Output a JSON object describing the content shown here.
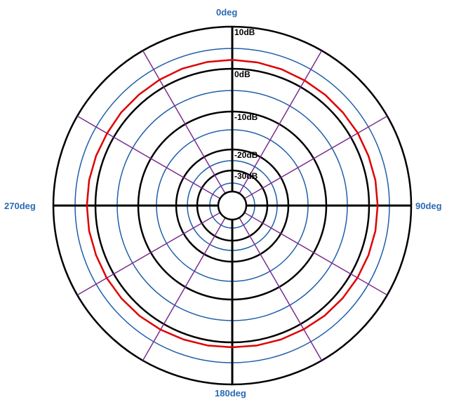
{
  "chart_data": {
    "type": "polar-line",
    "angle_labels": [
      "0deg",
      "90deg",
      "180deg",
      "270deg"
    ],
    "angle_label_angles": [
      0,
      90,
      180,
      270
    ],
    "ring_labels": [
      "10dB",
      "0dB",
      "-10dB",
      "-20dB",
      "-30dB"
    ],
    "major_rings_db": [
      10,
      0,
      -10,
      -20,
      -30
    ],
    "minor_rings_db": [
      5,
      -5,
      -15,
      -25,
      -35
    ],
    "r_range_db": [
      -40,
      10
    ],
    "spoke_angles_deg": [
      30,
      60,
      120,
      150,
      210,
      240,
      300,
      330
    ],
    "series": [
      {
        "color": "#e00000",
        "points": [
          {
            "angle": 0,
            "db": 2.2
          },
          {
            "angle": 10,
            "db": 2.1
          },
          {
            "angle": 20,
            "db": 2.0
          },
          {
            "angle": 30,
            "db": 1.9
          },
          {
            "angle": 40,
            "db": 1.9
          },
          {
            "angle": 50,
            "db": 1.9
          },
          {
            "angle": 60,
            "db": 2.0
          },
          {
            "angle": 70,
            "db": 2.0
          },
          {
            "angle": 80,
            "db": 2.1
          },
          {
            "angle": 90,
            "db": 2.1
          },
          {
            "angle": 100,
            "db": 2.1
          },
          {
            "angle": 110,
            "db": 2.0
          },
          {
            "angle": 120,
            "db": 1.9
          },
          {
            "angle": 130,
            "db": 1.8
          },
          {
            "angle": 140,
            "db": 1.7
          },
          {
            "angle": 150,
            "db": 1.5
          },
          {
            "angle": 160,
            "db": 1.4
          },
          {
            "angle": 170,
            "db": 1.3
          },
          {
            "angle": 180,
            "db": 1.2
          },
          {
            "angle": 190,
            "db": 1.3
          },
          {
            "angle": 200,
            "db": 1.4
          },
          {
            "angle": 210,
            "db": 1.6
          },
          {
            "angle": 220,
            "db": 1.8
          },
          {
            "angle": 230,
            "db": 1.9
          },
          {
            "angle": 240,
            "db": 2.0
          },
          {
            "angle": 250,
            "db": 2.0
          },
          {
            "angle": 260,
            "db": 2.1
          },
          {
            "angle": 270,
            "db": 2.1
          },
          {
            "angle": 280,
            "db": 2.1
          },
          {
            "angle": 290,
            "db": 2.0
          },
          {
            "angle": 300,
            "db": 1.9
          },
          {
            "angle": 310,
            "db": 2.0
          },
          {
            "angle": 320,
            "db": 2.0
          },
          {
            "angle": 330,
            "db": 2.1
          },
          {
            "angle": 340,
            "db": 2.2
          },
          {
            "angle": 350,
            "db": 2.2
          }
        ]
      }
    ],
    "colors": {
      "major_ring": "#000000",
      "minor_ring": "#1f5fa8",
      "spoke": "#7b2c91",
      "axis": "#000000",
      "angle_label": "#2a6ab5"
    }
  }
}
